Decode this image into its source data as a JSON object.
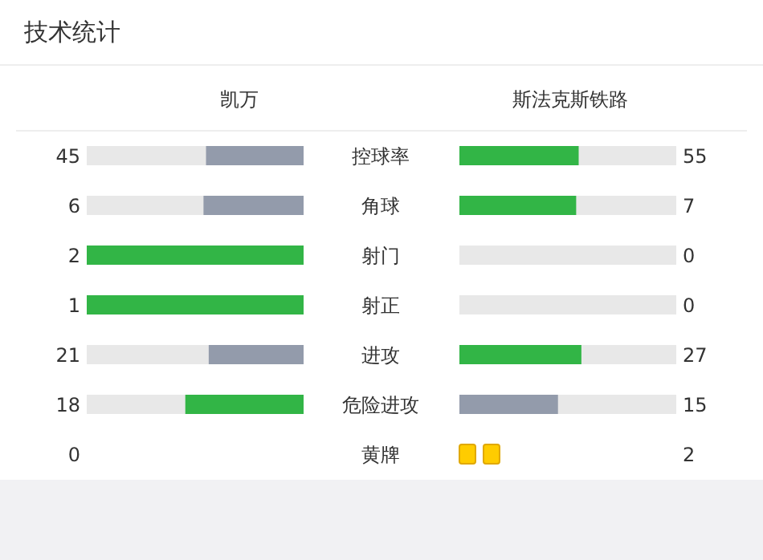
{
  "chart_data": [
    {
      "type": "other",
      "title": "技术统计",
      "data_labels": true,
      "categories": [
        "控球率",
        "角球",
        "射门",
        "射正",
        "进攻",
        "危险进攻"
      ],
      "series": [
        {
          "name": "凯万",
          "values": [
            45,
            6,
            2,
            1,
            21,
            18
          ],
          "colors": [
            "#939bab",
            "#939bab",
            "#32b546",
            "#32b546",
            "#939bab",
            "#32b546"
          ]
        },
        {
          "name": "斯法克斯铁路",
          "values": [
            55,
            7,
            0,
            0,
            27,
            15
          ],
          "colors": [
            "#32b546",
            "#32b546",
            "#939bab",
            "#939bab",
            "#32b546",
            "#939bab"
          ]
        }
      ]
    },
    {
      "type": "other",
      "data_labels": true,
      "categories": [
        "黄牌"
      ],
      "series": [
        {
          "values": [
            0
          ],
          "color": "#ffcc00"
        },
        {
          "values": [
            2
          ],
          "color": "#ffcc00"
        }
      ]
    }
  ]
}
